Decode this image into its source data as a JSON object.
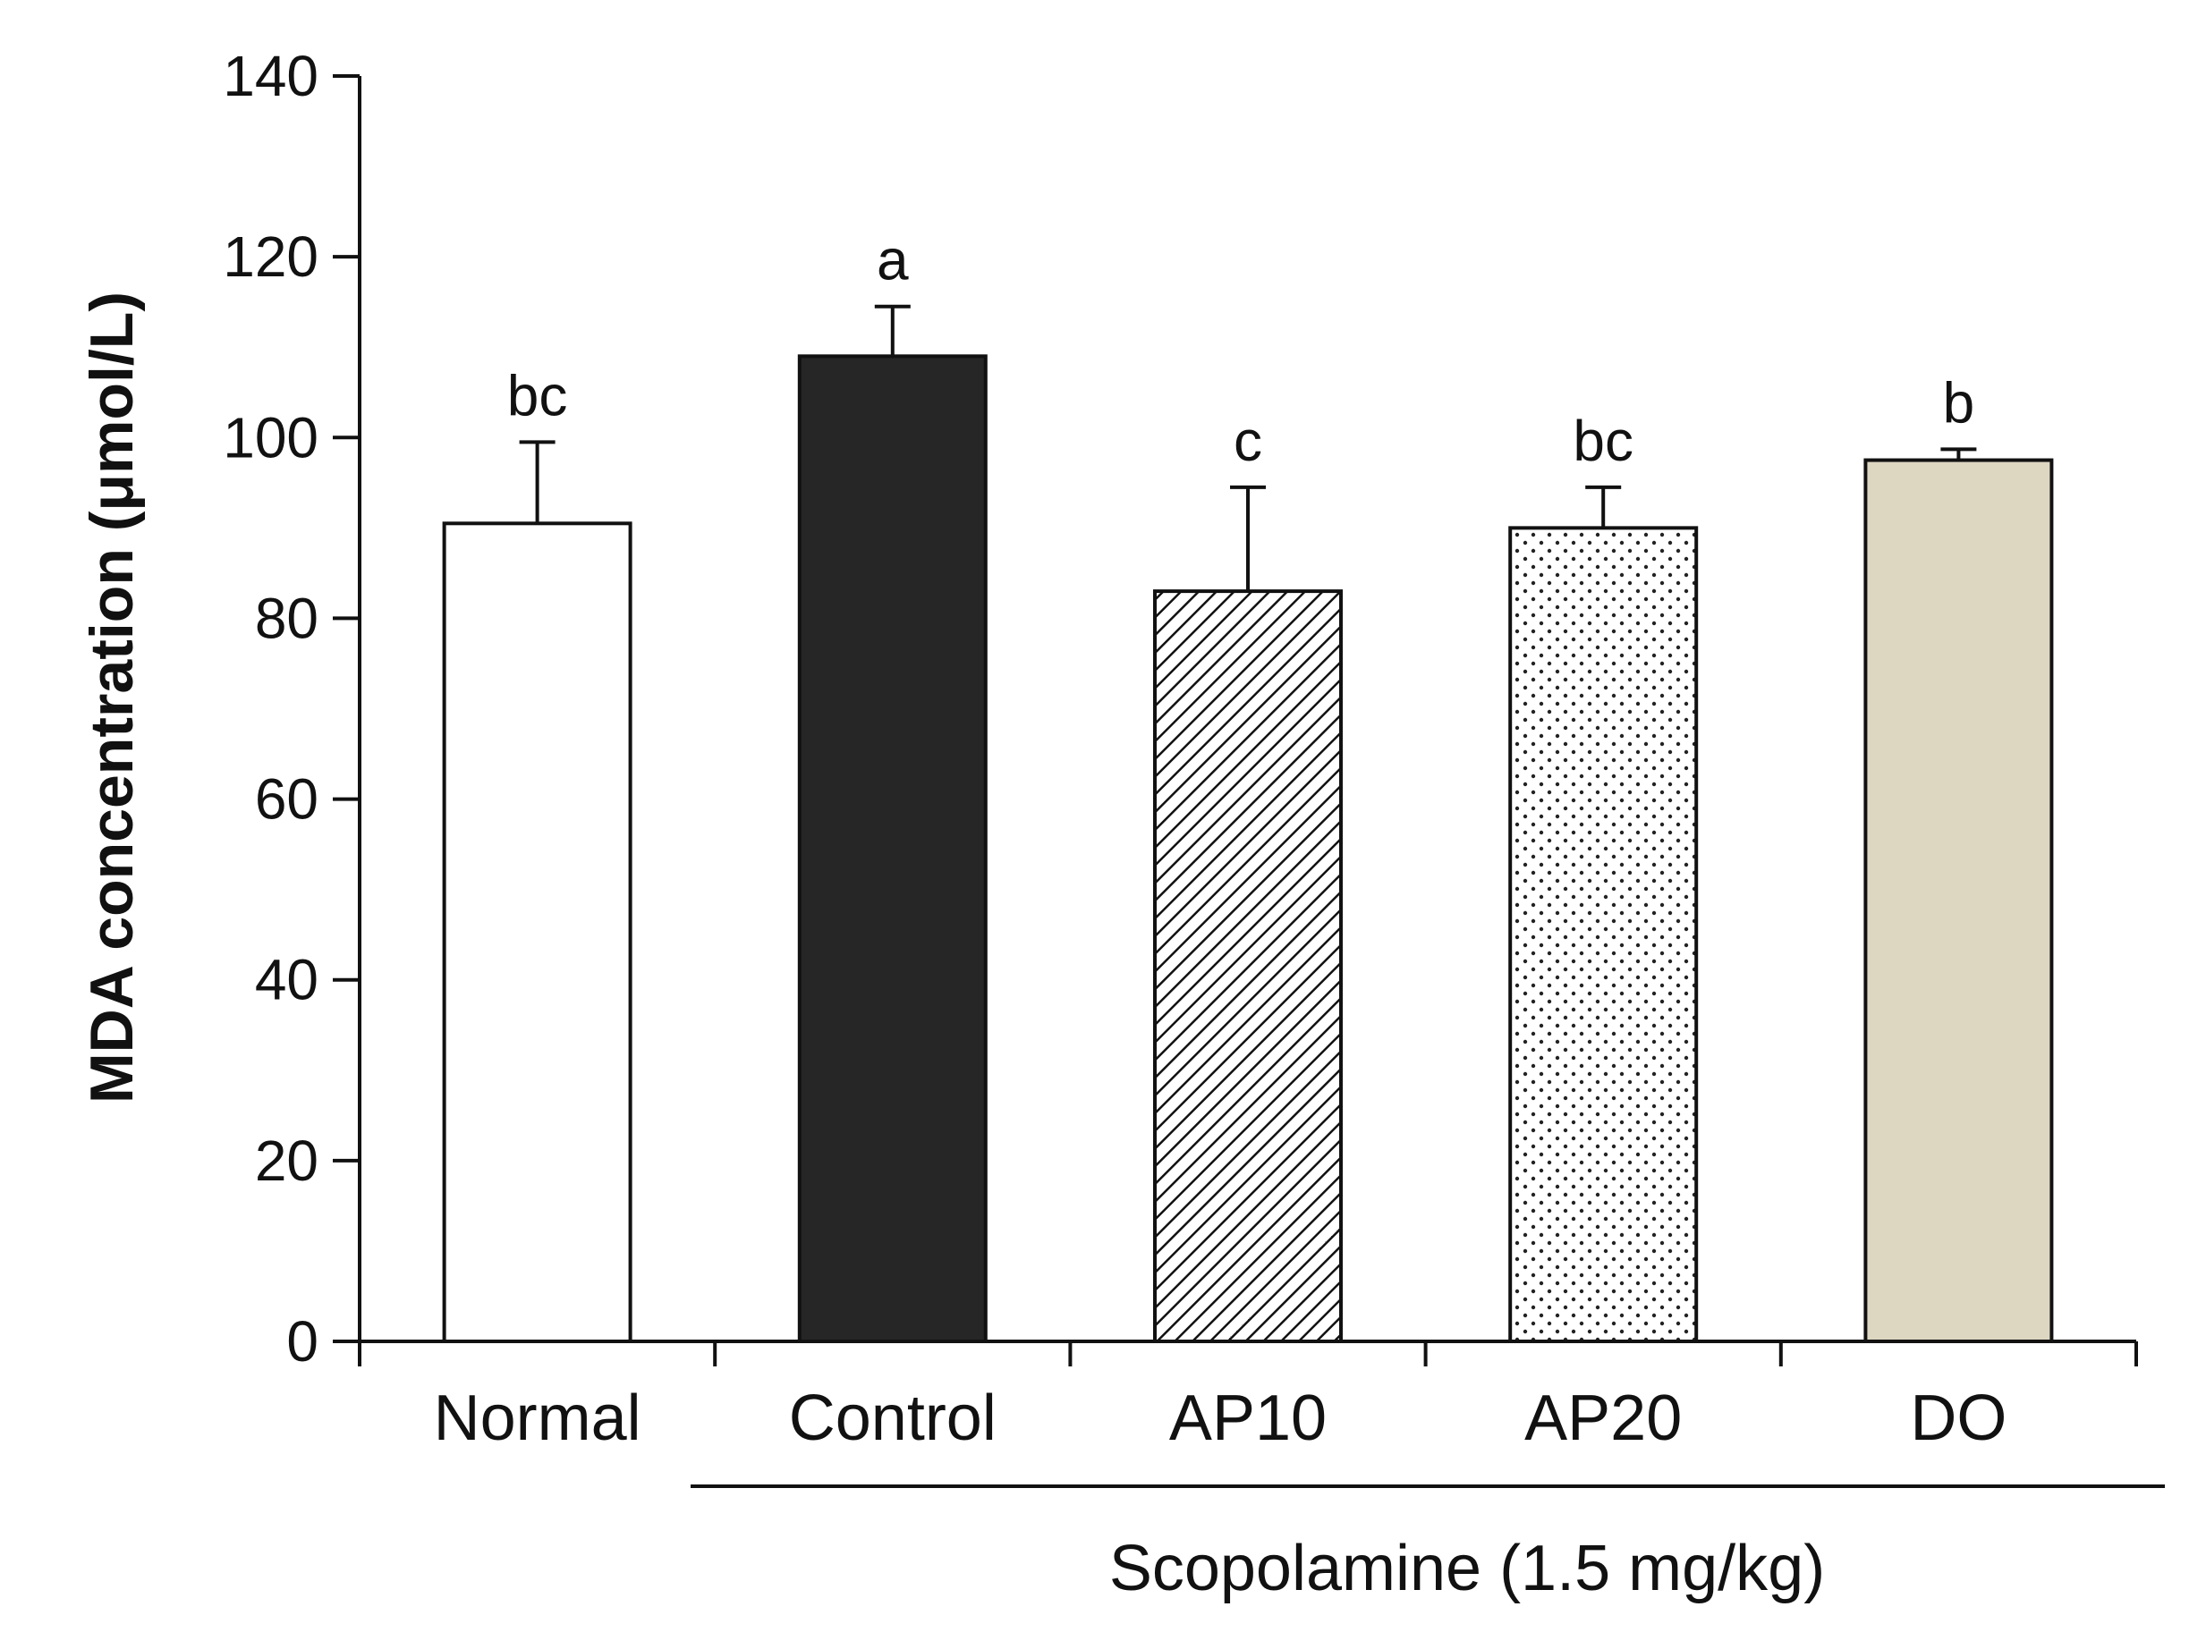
{
  "chart_data": {
    "type": "bar",
    "title": "",
    "xlabel": "",
    "ylabel": "MDA concentration (μmol/L)",
    "ylim": [
      0,
      140
    ],
    "yticks": [
      0,
      20,
      40,
      60,
      80,
      100,
      120,
      140
    ],
    "categories": [
      "Normal",
      "Control",
      "AP10",
      "AP20",
      "DO"
    ],
    "values": [
      90.5,
      109,
      83,
      90,
      97.5
    ],
    "errors": [
      9,
      5.5,
      11.5,
      4.5,
      1.2
    ],
    "significance": [
      "bc",
      "a",
      "c",
      "bc",
      "b"
    ],
    "fills": [
      "white",
      "black",
      "diagonal-hatch",
      "dots",
      "tan"
    ],
    "colors": {
      "white": "#ffffff",
      "black": "#262626",
      "tan": "#ddd6c1",
      "stroke": "#111111"
    },
    "group_label": "Scopolamine (1.5 mg/kg)",
    "grid": false
  }
}
